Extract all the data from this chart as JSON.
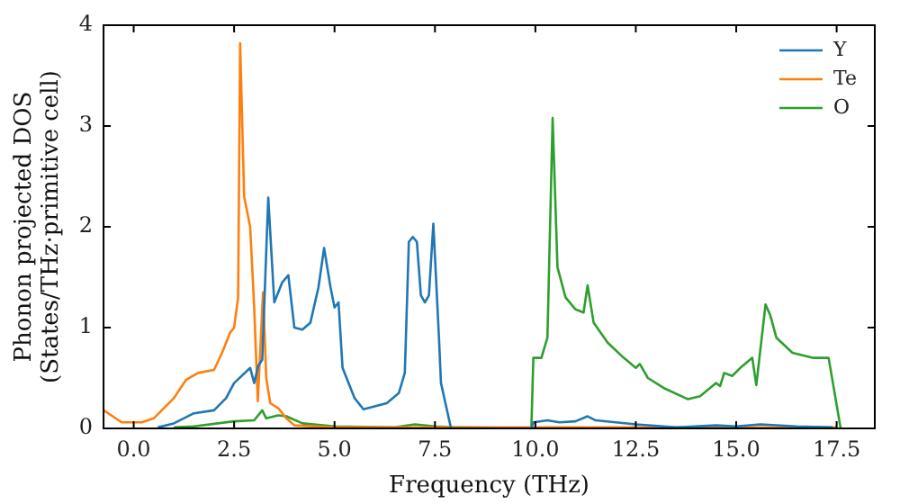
{
  "chart_data": {
    "type": "line",
    "xlabel": "Frequency (THz)",
    "ylabel": "Phonon projected DOS\n(States/THz·primitive cell)",
    "xlim": [
      -0.75,
      18.45
    ],
    "ylim": [
      0,
      4
    ],
    "xticks": [
      {
        "value": 0,
        "label": "0.0"
      },
      {
        "value": 2.5,
        "label": "2.5"
      },
      {
        "value": 5,
        "label": "5.0"
      },
      {
        "value": 7.5,
        "label": "7.5"
      },
      {
        "value": 10,
        "label": "10.0"
      },
      {
        "value": 12.5,
        "label": "12.5"
      },
      {
        "value": 15,
        "label": "15.0"
      },
      {
        "value": 17.5,
        "label": "17.5"
      }
    ],
    "yticks": [
      0,
      1,
      2,
      3,
      4
    ],
    "grid": false,
    "legend": "top right",
    "marker": "none",
    "line_style": "solid",
    "series": [
      {
        "name": "Y",
        "color": "#1f77b4",
        "x": [
          0.6,
          1.0,
          1.5,
          2.0,
          2.3,
          2.5,
          2.9,
          3.0,
          3.1,
          3.2,
          3.35,
          3.5,
          3.7,
          3.85,
          4.0,
          4.2,
          4.4,
          4.6,
          4.74,
          4.9,
          5.0,
          5.1,
          5.2,
          5.5,
          5.72,
          6.3,
          6.6,
          6.75,
          6.85,
          6.95,
          7.05,
          7.15,
          7.25,
          7.35,
          7.46,
          7.6,
          7.65,
          7.9,
          9.9,
          9.95,
          10.3,
          10.6,
          11.0,
          11.3,
          11.5,
          12.5,
          13.5,
          14.5,
          15.0,
          15.6,
          16.5,
          17.4
        ],
        "values": [
          0.01,
          0.05,
          0.15,
          0.18,
          0.3,
          0.45,
          0.6,
          0.45,
          0.62,
          0.68,
          2.29,
          1.25,
          1.45,
          1.52,
          1.0,
          0.98,
          1.05,
          1.4,
          1.79,
          1.4,
          1.2,
          1.25,
          0.6,
          0.3,
          0.19,
          0.25,
          0.35,
          0.55,
          1.85,
          1.9,
          1.85,
          1.32,
          1.25,
          1.32,
          2.03,
          0.9,
          0.45,
          0,
          0,
          0.06,
          0.08,
          0.06,
          0.07,
          0.12,
          0.08,
          0.04,
          0.01,
          0.03,
          0.02,
          0.04,
          0.02,
          0.01
        ]
      },
      {
        "name": "Te",
        "color": "#ff7f0e",
        "x": [
          -0.75,
          -0.3,
          0.2,
          0.5,
          1.0,
          1.3,
          1.6,
          2.0,
          2.2,
          2.4,
          2.5,
          2.6,
          2.65,
          2.75,
          2.9,
          3.0,
          3.09,
          3.22,
          3.3,
          3.4,
          3.6,
          3.8,
          4.0,
          5.0,
          17.5
        ],
        "values": [
          0.18,
          0.06,
          0.06,
          0.1,
          0.3,
          0.48,
          0.55,
          0.58,
          0.75,
          0.95,
          1.0,
          1.3,
          3.82,
          2.3,
          2.0,
          1.2,
          0.27,
          1.35,
          0.5,
          0.25,
          0.2,
          0.1,
          0.03,
          0.01,
          0.01
        ]
      },
      {
        "name": "O",
        "color": "#2ca02c",
        "x": [
          1.0,
          1.5,
          2.5,
          3.0,
          3.2,
          3.3,
          3.6,
          3.8,
          4.2,
          5.0,
          6.5,
          7.0,
          7.5,
          8.0,
          9.9,
          9.95,
          10.15,
          10.3,
          10.43,
          10.55,
          10.75,
          11.0,
          11.2,
          11.3,
          11.45,
          11.8,
          12.2,
          12.5,
          12.6,
          12.8,
          13.2,
          13.8,
          14.1,
          14.5,
          14.6,
          14.7,
          14.9,
          15.1,
          15.4,
          15.5,
          15.73,
          15.85,
          16.0,
          16.4,
          16.9,
          17.3,
          17.6
        ],
        "values": [
          0.01,
          0.02,
          0.07,
          0.08,
          0.18,
          0.1,
          0.13,
          0.12,
          0.05,
          0.02,
          0.01,
          0.04,
          0.02,
          0.01,
          0,
          0.7,
          0.7,
          0.9,
          3.08,
          1.6,
          1.3,
          1.18,
          1.15,
          1.42,
          1.05,
          0.85,
          0.7,
          0.6,
          0.64,
          0.5,
          0.4,
          0.29,
          0.32,
          0.45,
          0.42,
          0.55,
          0.52,
          0.6,
          0.7,
          0.43,
          1.23,
          1.12,
          0.9,
          0.75,
          0.7,
          0.7,
          0
        ]
      }
    ]
  }
}
